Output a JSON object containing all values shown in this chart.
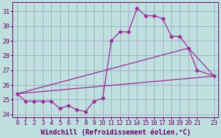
{
  "xlabel": "Windchill (Refroidissement éolien,°C)",
  "background_color": "#c0e0e0",
  "grid_color": "#9999bb",
  "line_color": "#993399",
  "xlim": [
    -0.5,
    23.5
  ],
  "ylim": [
    23.8,
    31.6
  ],
  "yticks": [
    24,
    25,
    26,
    27,
    28,
    29,
    30,
    31
  ],
  "xticks": [
    0,
    1,
    2,
    3,
    4,
    5,
    6,
    7,
    8,
    9,
    10,
    11,
    12,
    13,
    14,
    15,
    16,
    17,
    18,
    19,
    20,
    21,
    23
  ],
  "xtick_labels": [
    "0",
    "1",
    "2",
    "3",
    "4",
    "5",
    "6",
    "7",
    "8",
    "9",
    "10",
    "11",
    "12",
    "13",
    "14",
    "15",
    "16",
    "17",
    "18",
    "19",
    "20",
    "21",
    "23"
  ],
  "line1_x": [
    0,
    1,
    2,
    3,
    4,
    5,
    6,
    7,
    8,
    9,
    10,
    11,
    12,
    13,
    14,
    15,
    16,
    17,
    18,
    19,
    20,
    21,
    23
  ],
  "line1_y": [
    25.4,
    24.9,
    24.9,
    24.9,
    24.9,
    24.4,
    24.6,
    24.3,
    24.2,
    24.9,
    25.1,
    29.0,
    29.6,
    29.6,
    31.2,
    30.7,
    30.7,
    30.5,
    29.3,
    29.3,
    28.5,
    27.0,
    26.6
  ],
  "line2_x": [
    0,
    23
  ],
  "line2_y": [
    25.4,
    26.6
  ],
  "line3_x": [
    0,
    20,
    23
  ],
  "line3_y": [
    25.4,
    28.5,
    26.6
  ],
  "marker": "D",
  "marker_size": 2.5,
  "linewidth": 1.0,
  "font_color": "#660066",
  "xlabel_fontsize": 7.0,
  "tick_fontsize": 6.5
}
